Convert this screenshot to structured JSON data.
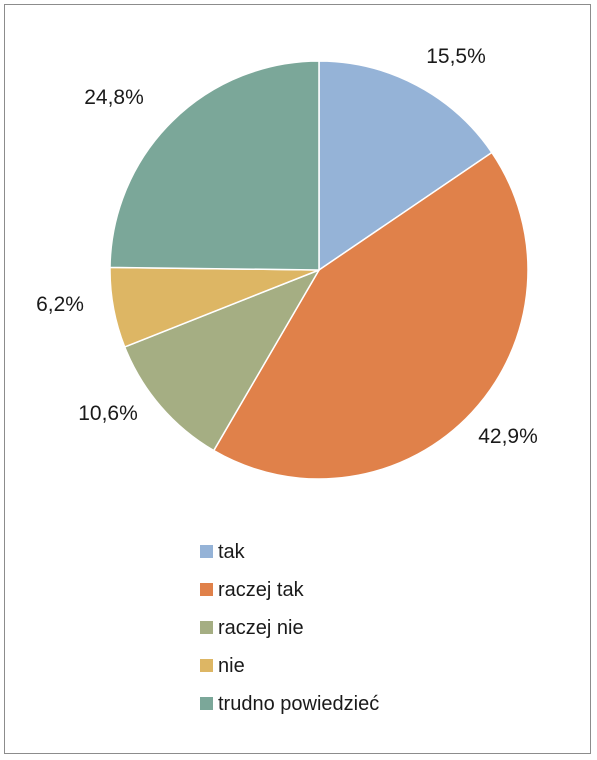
{
  "chart_data": {
    "type": "pie",
    "title": "",
    "categories": [
      "tak",
      "raczej tak",
      "raczej nie",
      "nie",
      "trudno powiedzieć"
    ],
    "values": [
      15.5,
      42.9,
      10.6,
      6.2,
      24.8
    ],
    "value_labels": [
      "15,5%",
      "42,9%",
      "10,6%",
      "6,2%",
      "24,8%"
    ],
    "colors": [
      "#95b3d7",
      "#e0814a",
      "#a5ae83",
      "#ddb664",
      "#7ba799"
    ],
    "legend_position": "bottom",
    "start_angle": "top, clockwise"
  }
}
